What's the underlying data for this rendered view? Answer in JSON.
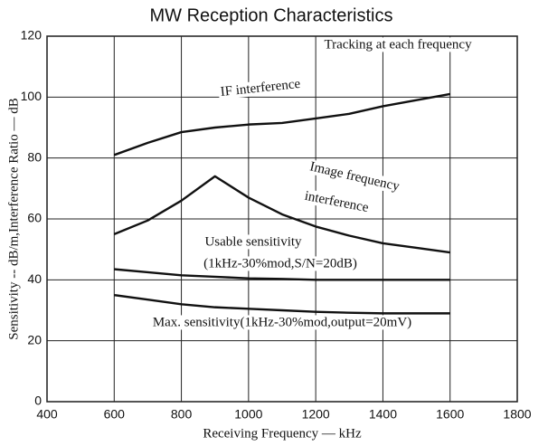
{
  "chart_data": {
    "type": "line",
    "title": "MW Reception Characteristics",
    "x_label": "Receiving Frequency — kHz",
    "y_label": "Sensitivity -- dB/m,Interference Ratio — dB",
    "x": [
      600,
      700,
      800,
      900,
      1000,
      1100,
      1200,
      1300,
      1400,
      1500,
      1600
    ],
    "series": [
      {
        "color": "#111111",
        "values": [
          81,
          85,
          88.5,
          90,
          91,
          91.5,
          93,
          94.5,
          97,
          99,
          101
        ]
      },
      {
        "color": "#111111",
        "values": [
          55,
          59.5,
          66,
          74,
          67,
          61.5,
          57.5,
          54.5,
          52,
          50.5,
          49
        ]
      },
      {
        "color": "#111111",
        "values": [
          43.5,
          42.5,
          41.5,
          41,
          40.5,
          40.3,
          40,
          40,
          40,
          40,
          40
        ]
      },
      {
        "color": "#111111",
        "values": [
          35,
          33.5,
          32,
          31,
          30.5,
          30,
          29.5,
          29.2,
          29,
          29,
          29
        ]
      }
    ],
    "annotations": [
      {
        "text": "Tracking at each frequency"
      },
      {
        "text": "IF interference"
      },
      {
        "text": "Image frequency"
      },
      {
        "text": "interference"
      },
      {
        "text": "Usable sensitivity"
      },
      {
        "text": "(1kHz-30%mod,S/N=20dB)"
      },
      {
        "text": "Max. sensitivity(1kHz-30%mod,output=20mV)"
      }
    ],
    "xlim": [
      400,
      1800
    ],
    "xticks": [
      400,
      600,
      800,
      1000,
      1200,
      1400,
      1600,
      1800
    ],
    "ylim": [
      0,
      120
    ],
    "yticks": [
      0,
      20,
      40,
      60,
      80,
      100,
      120
    ],
    "grid": true
  }
}
